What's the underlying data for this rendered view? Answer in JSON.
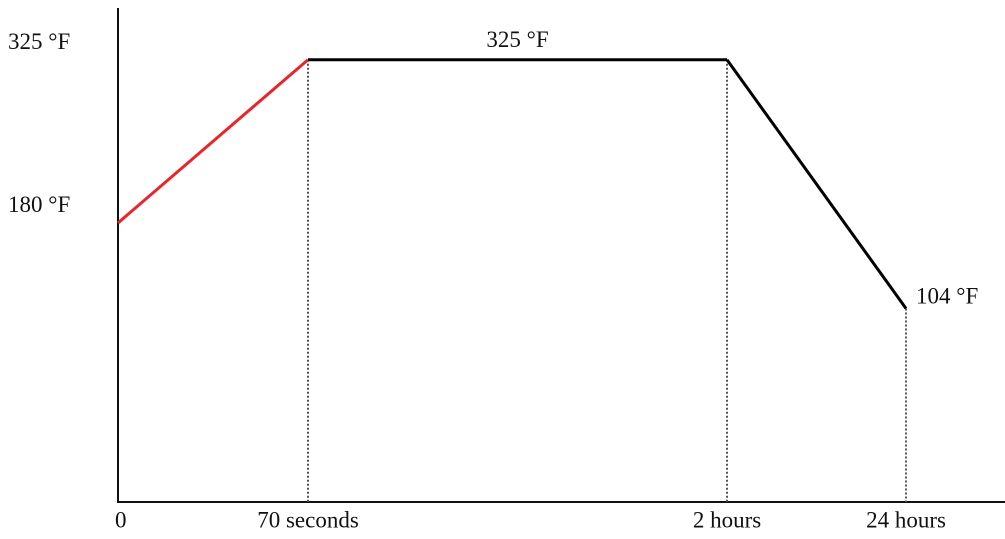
{
  "chart_data": {
    "type": "line",
    "categories": [
      "0",
      "70 seconds",
      "2 hours",
      "24 hours"
    ],
    "series": [
      {
        "values": [
          180,
          325,
          325,
          104
        ],
        "segment_colors": [
          "#e8262a",
          "#000000",
          "#000000"
        ],
        "value_labels": [
          null,
          null,
          "325 °F",
          "104 °F"
        ]
      }
    ],
    "ylim": [
      -68,
      371
    ],
    "yticks": [
      {
        "value": 180,
        "label": "180 °F"
      },
      {
        "value": 325,
        "label": "325 °F"
      }
    ],
    "drop_lines": true
  }
}
